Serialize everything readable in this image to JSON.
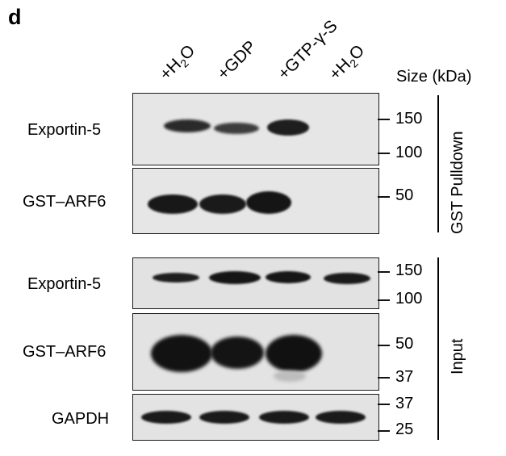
{
  "panel_letter": "d",
  "lanes": [
    {
      "label": "+H",
      "sub": "2",
      "tail": "O"
    },
    {
      "label": "+GDP",
      "sub": "",
      "tail": ""
    },
    {
      "label": "+GTP-γ-S",
      "sub": "",
      "tail": ""
    },
    {
      "label": "+H",
      "sub": "2",
      "tail": "O"
    }
  ],
  "size_header": "Size (kDa)",
  "rows": [
    {
      "label": "Exportin-5",
      "markers": [
        "150",
        "100"
      ]
    },
    {
      "label": "GST–ARF6",
      "markers": [
        "50"
      ]
    },
    {
      "label": "Exportin-5",
      "markers": [
        "150",
        "100"
      ]
    },
    {
      "label": "GST–ARF6",
      "markers": [
        "50",
        "37"
      ]
    },
    {
      "label": "GAPDH",
      "markers": [
        "37",
        "25"
      ]
    }
  ],
  "groups": {
    "pulldown": "GST Pulldown",
    "input": "Input"
  },
  "colors": {
    "blot_background": "#e3e3e3",
    "band": "#1b1b1b"
  }
}
